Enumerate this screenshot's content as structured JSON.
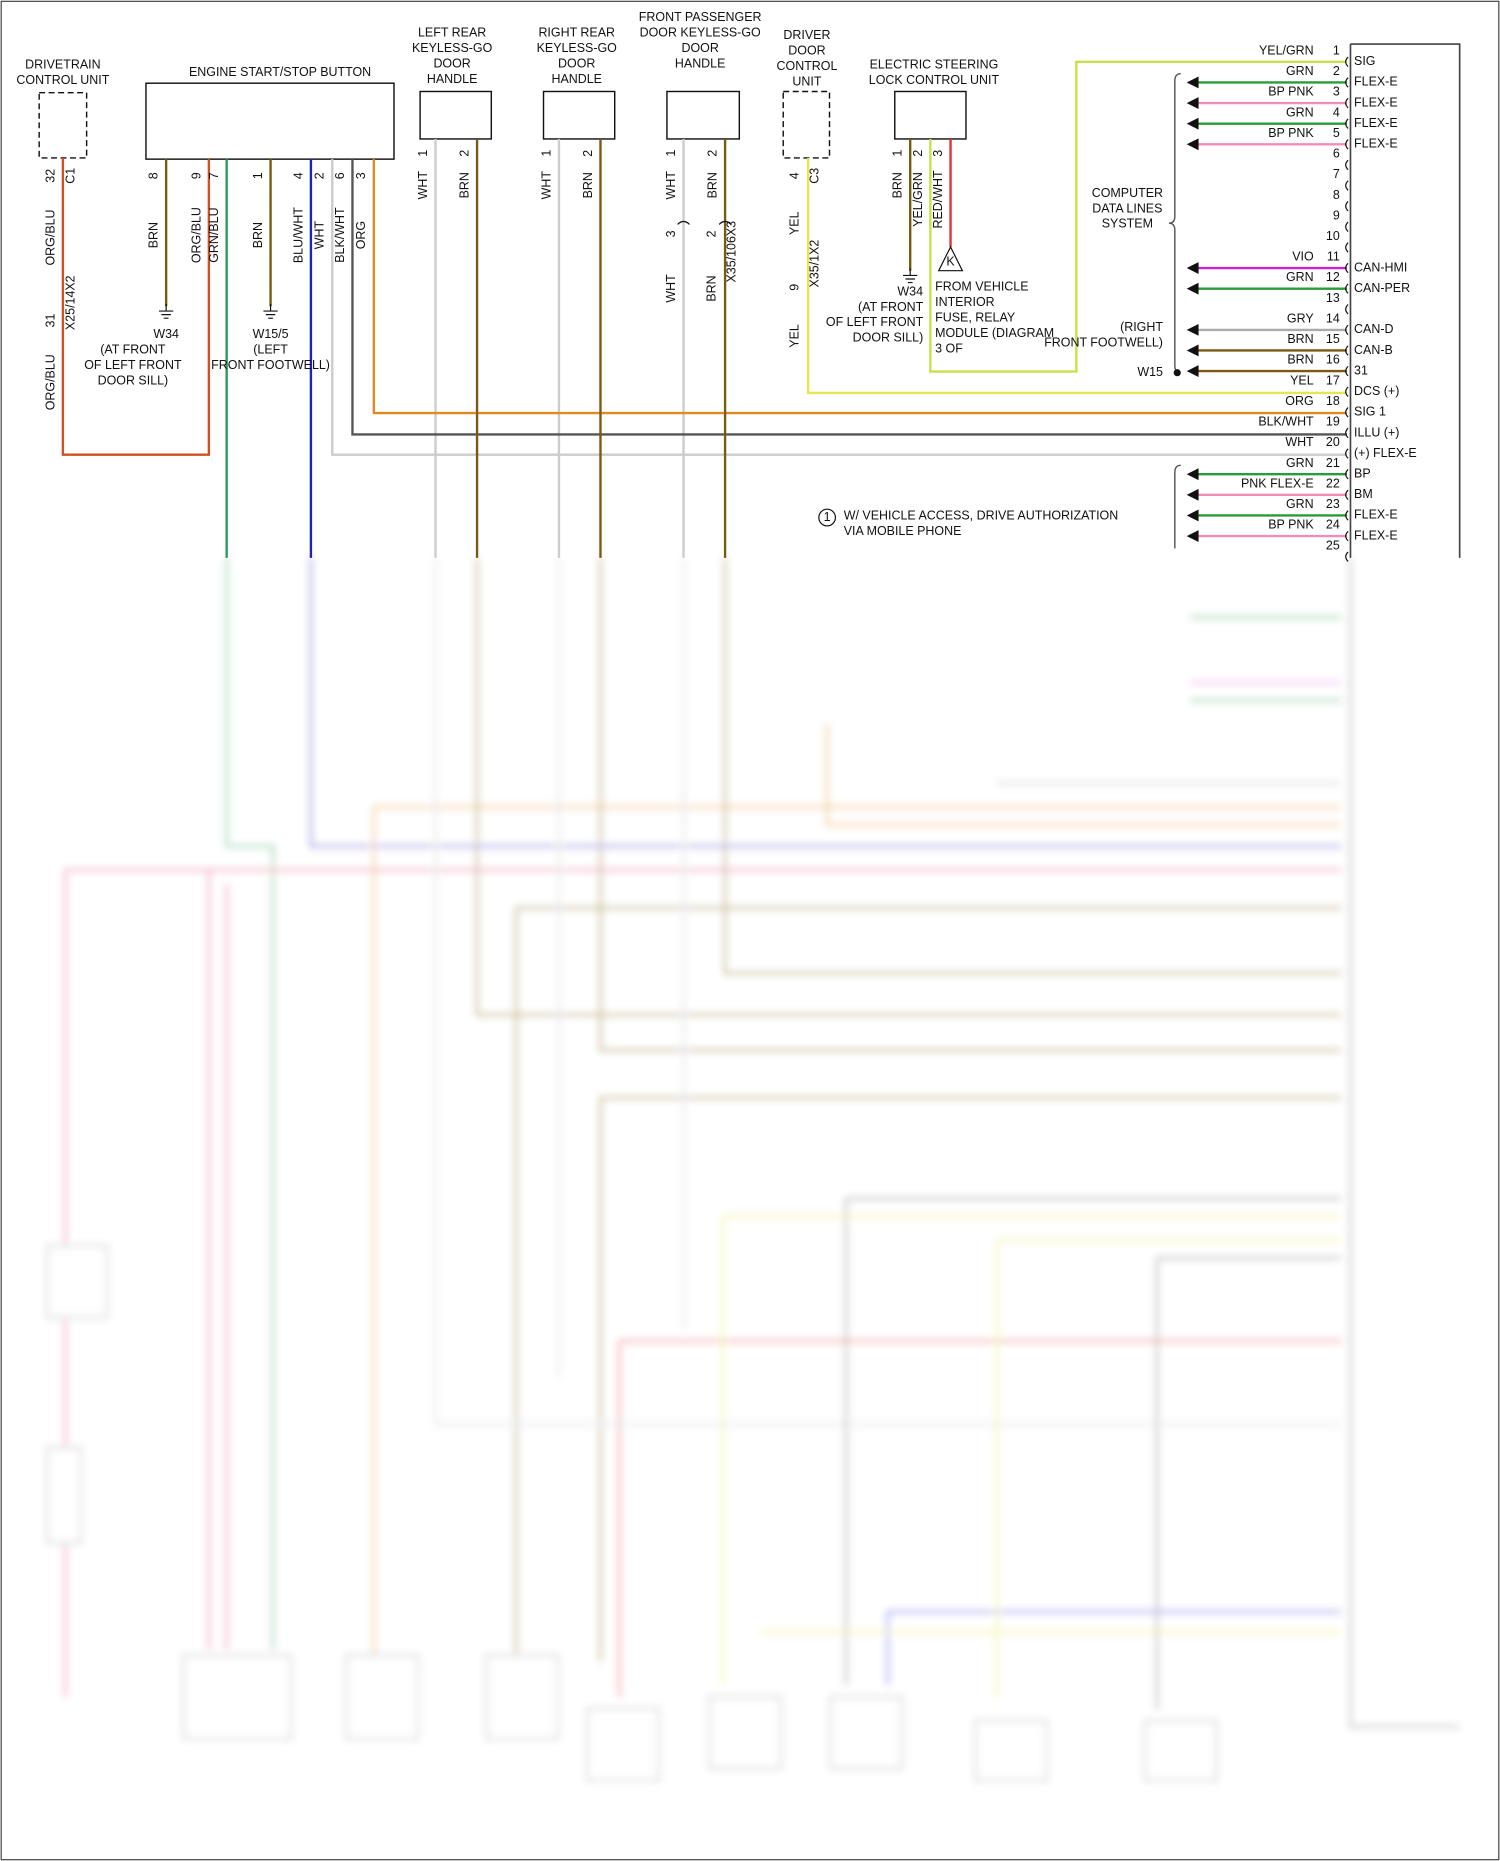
{
  "components": [
    {
      "label": [
        "DRIVETRAIN",
        "CONTROL UNIT"
      ]
    },
    {
      "label": [
        "ENGINE START/STOP BUTTON"
      ]
    },
    {
      "label": [
        "LEFT REAR",
        "KEYLESS-GO",
        "DOOR",
        "HANDLE"
      ]
    },
    {
      "label": [
        "RIGHT REAR",
        "KEYLESS-GO",
        "DOOR",
        "HANDLE"
      ]
    },
    {
      "label": [
        "FRONT PASSENGER",
        "DOOR KEYLESS-GO",
        "DOOR",
        "HANDLE"
      ]
    },
    {
      "label": [
        "DRIVER",
        "DOOR",
        "CONTROL",
        "UNIT"
      ]
    },
    {
      "label": [
        "ELECTRIC STEERING",
        "LOCK CONTROL UNIT"
      ]
    },
    {
      "label": [
        "COMPUTER",
        "DATA LINES",
        "SYSTEM"
      ]
    }
  ],
  "drivetrain_wire": {
    "pin": "32",
    "connector": "C1",
    "wire": "ORG/BLU",
    "splice_pin": "31",
    "splice_connector": "X25/14X2",
    "splice_wire": "ORG/BLU"
  },
  "engine_pins": [
    {
      "pin": "8",
      "wire": "BRN"
    },
    {
      "pin": "9",
      "wire": "ORG/BLU"
    },
    {
      "pin": "7",
      "wire": "GRN/BLU"
    },
    {
      "pin": "1",
      "wire": "BRN"
    },
    {
      "pin": "4",
      "wire": "BLU/WHT"
    },
    {
      "pin": "2",
      "wire": "WHT"
    },
    {
      "pin": "6",
      "wire": "BLK/WHT"
    },
    {
      "pin": "3",
      "wire": "ORG"
    }
  ],
  "left_rear_pins": [
    {
      "pin": "1",
      "wire": "WHT"
    },
    {
      "pin": "2",
      "wire": "BRN"
    }
  ],
  "right_rear_pins": [
    {
      "pin": "1",
      "wire": "WHT"
    },
    {
      "pin": "2",
      "wire": "BRN"
    }
  ],
  "front_passenger_pins": [
    {
      "pin": "1",
      "wire": "WHT",
      "splice_pin": "3",
      "splice_wire": "WHT"
    },
    {
      "pin": "2",
      "wire": "BRN",
      "splice_pin": "2",
      "splice_wire": "BRN"
    }
  ],
  "front_passenger_connector": "X35/106X3",
  "driver_door": {
    "pin": "4",
    "connector": "C3",
    "wire": "YEL",
    "splice_pin": "9",
    "splice_connector": "X35/1X2",
    "splice_wire": "YEL"
  },
  "steering_pins": [
    {
      "pin": "1",
      "wire": "BRN"
    },
    {
      "pin": "2",
      "wire": "YEL/GRN"
    },
    {
      "pin": "3",
      "wire": "RED/WHT"
    }
  ],
  "grounds": [
    {
      "id": "W34",
      "location": [
        "(AT FRONT",
        "OF LEFT FRONT",
        "DOOR SILL)"
      ]
    },
    {
      "id": "W15/5",
      "location": [
        "(LEFT",
        "FRONT FOOTWELL)"
      ]
    },
    {
      "id": "W34",
      "location": [
        "(AT FRONT",
        "OF LEFT FRONT",
        "DOOR SILL)"
      ]
    },
    {
      "id": "W15",
      "location": [
        "(RIGHT",
        "FRONT FOOTWELL)"
      ]
    }
  ],
  "fuse_ref": {
    "symbol": "K",
    "text": [
      "FROM VEHICLE",
      "INTERIOR",
      "FUSE, RELAY",
      "MODULE (DIAGRAM",
      "3 OF"
    ]
  },
  "note": {
    "symbol": "1",
    "text": [
      "W/ VEHICLE ACCESS, DRIVE AUTHORIZATION",
      "VIA MOBILE PHONE"
    ]
  },
  "connector_pins": [
    {
      "pin": "1",
      "wire": "YEL/GRN",
      "function": "SIG",
      "color": "#c8e04a"
    },
    {
      "pin": "2",
      "wire": "GRN",
      "function": "FLEX-E",
      "color": "#2a9a3a"
    },
    {
      "pin": "3",
      "wire": "BP PNK",
      "function": "FLEX-E",
      "color": "#f08cb8"
    },
    {
      "pin": "4",
      "wire": "GRN",
      "function": "FLEX-E",
      "color": "#2a9a3a"
    },
    {
      "pin": "5",
      "wire": "BP PNK",
      "function": "FLEX-E",
      "color": "#f08cb8"
    },
    {
      "pin": "6"
    },
    {
      "pin": "7"
    },
    {
      "pin": "8"
    },
    {
      "pin": "9"
    },
    {
      "pin": "10"
    },
    {
      "pin": "11",
      "wire": "VIO",
      "function": "CAN-HMI",
      "color": "#d020d0"
    },
    {
      "pin": "12",
      "wire": "GRN",
      "function": "CAN-PER",
      "color": "#2a9a3a"
    },
    {
      "pin": "13"
    },
    {
      "pin": "14",
      "wire": "GRY",
      "function": "CAN-D",
      "color": "#aaaaaa"
    },
    {
      "pin": "15",
      "wire": "BRN",
      "function": "CAN-B",
      "color": "#7a5a10"
    },
    {
      "pin": "16",
      "wire": "BRN",
      "function": "31",
      "color": "#7a5a10"
    },
    {
      "pin": "17",
      "wire": "YEL",
      "function": "DCS (+)",
      "color": "#e6e650"
    },
    {
      "pin": "18",
      "wire": "ORG",
      "function": "SIG 1",
      "color": "#e08a20"
    },
    {
      "pin": "19",
      "wire": "BLK/WHT",
      "function": "ILLU (+)",
      "color": "#555555"
    },
    {
      "pin": "20",
      "wire": "WHT",
      "function": "(+) FLEX-E",
      "color": "#cccccc"
    },
    {
      "pin": "21",
      "wire": "GRN",
      "function": "BP",
      "color": "#2a9a3a"
    },
    {
      "pin": "22",
      "wire": "PNK FLEX-E",
      "function": "BM",
      "color": "#f08cb8"
    },
    {
      "pin": "23",
      "wire": "GRN",
      "function": "FLEX-E",
      "color": "#2a9a3a"
    },
    {
      "pin": "24",
      "wire": "BP PNK",
      "function": "FLEX-E",
      "color": "#f08cb8"
    },
    {
      "pin": "25"
    }
  ]
}
